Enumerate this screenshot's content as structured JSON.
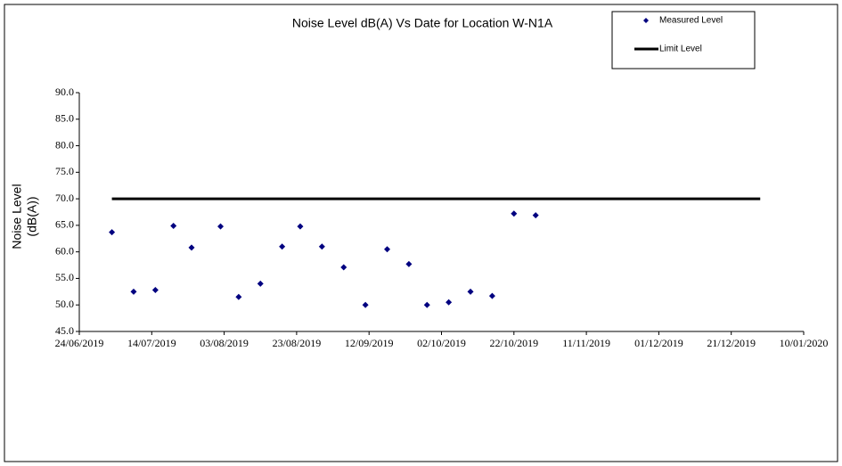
{
  "chart_data": {
    "type": "scatter",
    "title": "Noise Level dB(A) Vs Date for Location W-N1A",
    "y_label": [
      "Noise Level",
      "(dB(A))"
    ],
    "legend": "top-right",
    "grid": false,
    "xlim": [
      "2019-06-24",
      "2020-01-10"
    ],
    "xticks": [
      {
        "value": "2019-06-24",
        "label": "24/06/2019"
      },
      {
        "value": "2019-07-14",
        "label": "14/07/2019"
      },
      {
        "value": "2019-08-03",
        "label": "03/08/2019"
      },
      {
        "value": "2019-08-23",
        "label": "23/08/2019"
      },
      {
        "value": "2019-09-12",
        "label": "12/09/2019"
      },
      {
        "value": "2019-10-02",
        "label": "02/10/2019"
      },
      {
        "value": "2019-10-22",
        "label": "22/10/2019"
      },
      {
        "value": "2019-11-11",
        "label": "11/11/2019"
      },
      {
        "value": "2019-12-01",
        "label": "01/12/2019"
      },
      {
        "value": "2019-12-21",
        "label": "21/12/2019"
      },
      {
        "value": "2020-01-10",
        "label": "10/01/2020"
      }
    ],
    "ylim": [
      45,
      90
    ],
    "yticks": [
      {
        "value": 45,
        "label": "45.0"
      },
      {
        "value": 50,
        "label": "50.0"
      },
      {
        "value": 55,
        "label": "55.0"
      },
      {
        "value": 60,
        "label": "60.0"
      },
      {
        "value": 65,
        "label": "65.0"
      },
      {
        "value": 70,
        "label": "70.0"
      },
      {
        "value": 75,
        "label": "75.0"
      },
      {
        "value": 80,
        "label": "80.0"
      },
      {
        "value": 85,
        "label": "85.0"
      },
      {
        "value": 90,
        "label": "90.0"
      }
    ],
    "series": [
      {
        "name": "Measured Level",
        "color": "#000080",
        "mode": "markers",
        "x": [
          "2019-07-03",
          "2019-07-09",
          "2019-07-15",
          "2019-07-20",
          "2019-07-25",
          "2019-08-02",
          "2019-08-07",
          "2019-08-13",
          "2019-08-19",
          "2019-08-24",
          "2019-08-30",
          "2019-09-05",
          "2019-09-11",
          "2019-09-17",
          "2019-09-23",
          "2019-09-28",
          "2019-10-04",
          "2019-10-10",
          "2019-10-16",
          "2019-10-22",
          "2019-10-28"
        ],
        "values": [
          63.7,
          52.5,
          52.8,
          64.9,
          60.8,
          64.8,
          51.5,
          54.0,
          61.0,
          64.8,
          61.0,
          57.1,
          50.0,
          60.5,
          57.7,
          50.0,
          50.5,
          52.5,
          51.7,
          67.2,
          66.9
        ]
      },
      {
        "name": "Limit Level",
        "color": "#000000",
        "mode": "line",
        "x": [
          "2019-07-03",
          "2019-12-29"
        ],
        "values": [
          70,
          70
        ]
      }
    ]
  }
}
